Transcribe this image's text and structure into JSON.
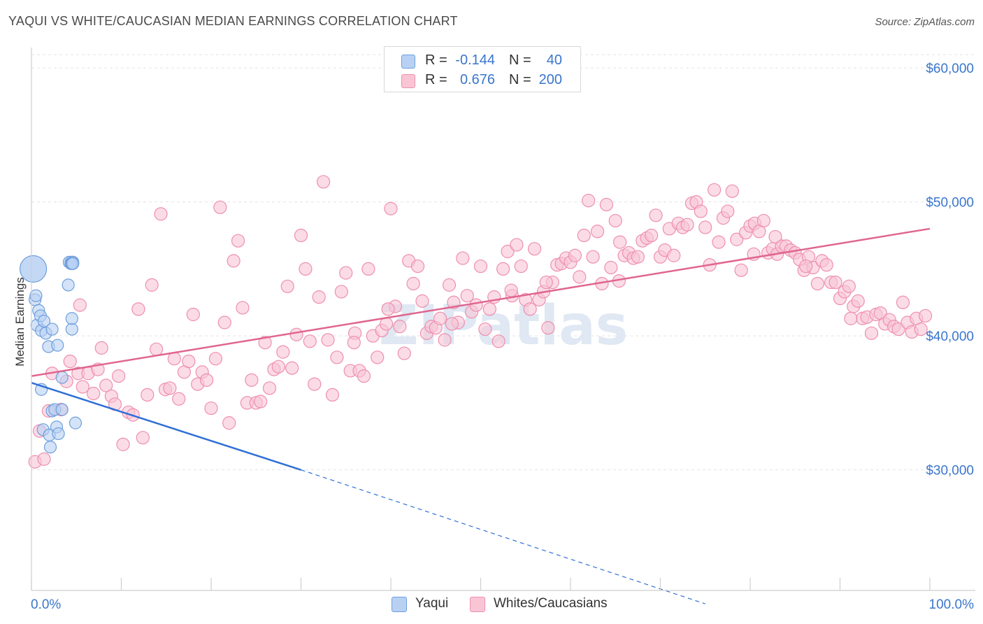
{
  "title": "YAQUI VS WHITE/CAUCASIAN MEDIAN EARNINGS CORRELATION CHART",
  "source": "Source: ZipAtlas.com",
  "watermark": "ZIPatlas",
  "legend": [
    {
      "r_label": "R =",
      "r_value": "-0.144",
      "n_label": "N =",
      "n_value": "40"
    },
    {
      "r_label": "R =",
      "r_value": "0.676",
      "n_label": "N =",
      "n_value": "200"
    }
  ],
  "bottom_legend": [
    "Yaqui",
    "Whites/Caucasians"
  ],
  "colors": {
    "yaqui_fill": "#b8d1f3",
    "yaqui_stroke": "#6f9fdc",
    "yaqui_line": "#2f6fd6",
    "white_fill": "#f9c5d5",
    "white_stroke": "#ee8faf",
    "white_line": "#e0668f",
    "axis_label": "#3a76cc",
    "grid": "#e3e3e3"
  },
  "chart_data": {
    "type": "scatter",
    "title": "YAQUI VS WHITE/CAUCASIAN MEDIAN EARNINGS CORRELATION CHART",
    "xlabel": "",
    "ylabel": "Median Earnings",
    "xlim": [
      0,
      100
    ],
    "ylim": [
      21000,
      61000
    ],
    "x_tick_labels": [
      "0.0%",
      "100.0%"
    ],
    "y_ticks": [
      30000,
      40000,
      50000,
      60000
    ],
    "y_tick_labels": [
      "$30,000",
      "$40,000",
      "$50,000",
      "$60,000"
    ],
    "grid": true,
    "series": [
      {
        "name": "Yaqui",
        "r": -0.144,
        "n": 40,
        "trend": {
          "x0": 0,
          "y0": 36500,
          "x1": 30,
          "y1": 30000,
          "dashed_to_x": 75,
          "dashed_to_y": 20000
        },
        "points": [
          [
            0.2,
            45000
          ],
          [
            0.4,
            42700
          ],
          [
            0.5,
            43000
          ],
          [
            0.6,
            40800
          ],
          [
            0.8,
            41900
          ],
          [
            1.0,
            41500
          ],
          [
            1.1,
            40400
          ],
          [
            1.4,
            41100
          ],
          [
            1.6,
            40200
          ],
          [
            1.9,
            39200
          ],
          [
            2.3,
            40500
          ],
          [
            2.9,
            39300
          ],
          [
            3.4,
            36900
          ],
          [
            1.1,
            36000
          ],
          [
            2.3,
            34400
          ],
          [
            2.6,
            34500
          ],
          [
            3.4,
            34500
          ],
          [
            1.3,
            33000
          ],
          [
            2.0,
            32600
          ],
          [
            2.8,
            33200
          ],
          [
            3.0,
            32700
          ],
          [
            2.1,
            31700
          ],
          [
            4.9,
            33500
          ],
          [
            4.1,
            43800
          ],
          [
            4.5,
            40500
          ],
          [
            4.5,
            41300
          ],
          [
            4.6,
            45400
          ],
          [
            4.6,
            45500
          ],
          [
            4.4,
            45500
          ],
          [
            4.2,
            45500
          ],
          [
            4.4,
            45400
          ],
          [
            4.5,
            45400
          ],
          [
            4.5,
            45400
          ],
          [
            4.6,
            45500
          ],
          [
            4.6,
            45400
          ],
          [
            4.4,
            45400
          ],
          [
            4.4,
            45400
          ],
          [
            4.5,
            45400
          ],
          [
            4.5,
            45400
          ],
          [
            4.6,
            45400
          ]
        ]
      },
      {
        "name": "Whites/Caucasians",
        "r": 0.676,
        "n": 200,
        "trend": {
          "x0": 0,
          "y0": 37000,
          "x1": 100,
          "y1": 48000
        },
        "points": [
          [
            0.4,
            30600
          ],
          [
            1.4,
            30800
          ],
          [
            0.9,
            32900
          ],
          [
            1.9,
            34400
          ],
          [
            2.3,
            37200
          ],
          [
            3.3,
            34500
          ],
          [
            3.9,
            36600
          ],
          [
            4.3,
            38100
          ],
          [
            5.2,
            37200
          ],
          [
            5.4,
            42300
          ],
          [
            5.7,
            36200
          ],
          [
            6.3,
            37200
          ],
          [
            6.9,
            35700
          ],
          [
            7.4,
            37500
          ],
          [
            7.8,
            39100
          ],
          [
            8.3,
            36300
          ],
          [
            8.9,
            35500
          ],
          [
            9.3,
            34900
          ],
          [
            9.7,
            37000
          ],
          [
            10.2,
            31900
          ],
          [
            10.8,
            34300
          ],
          [
            11.3,
            34100
          ],
          [
            11.9,
            42000
          ],
          [
            12.4,
            32400
          ],
          [
            12.9,
            35600
          ],
          [
            13.4,
            43800
          ],
          [
            13.9,
            39000
          ],
          [
            14.4,
            49100
          ],
          [
            14.9,
            36000
          ],
          [
            15.4,
            36100
          ],
          [
            15.9,
            38300
          ],
          [
            16.4,
            35300
          ],
          [
            17.0,
            37300
          ],
          [
            17.5,
            38100
          ],
          [
            18.0,
            41600
          ],
          [
            18.5,
            36400
          ],
          [
            19.0,
            37300
          ],
          [
            19.5,
            36700
          ],
          [
            20.0,
            34600
          ],
          [
            20.5,
            38300
          ],
          [
            21.0,
            49600
          ],
          [
            21.5,
            41000
          ],
          [
            22.0,
            33500
          ],
          [
            22.5,
            45600
          ],
          [
            23.0,
            47100
          ],
          [
            23.5,
            42100
          ],
          [
            24.0,
            35000
          ],
          [
            24.5,
            36700
          ],
          [
            25.0,
            35000
          ],
          [
            25.5,
            35100
          ],
          [
            26.0,
            39500
          ],
          [
            26.5,
            36100
          ],
          [
            27.0,
            37500
          ],
          [
            27.5,
            37700
          ],
          [
            28.0,
            38800
          ],
          [
            28.5,
            43700
          ],
          [
            29.0,
            37600
          ],
          [
            29.5,
            40100
          ],
          [
            30.0,
            47500
          ],
          [
            30.5,
            45000
          ],
          [
            31.0,
            39600
          ],
          [
            31.5,
            36400
          ],
          [
            32.0,
            42900
          ],
          [
            32.5,
            51500
          ],
          [
            33.0,
            39700
          ],
          [
            33.5,
            35600
          ],
          [
            34.0,
            38400
          ],
          [
            34.5,
            43300
          ],
          [
            35.0,
            44700
          ],
          [
            35.5,
            37400
          ],
          [
            36.0,
            40200
          ],
          [
            36.5,
            37400
          ],
          [
            37.0,
            37000
          ],
          [
            37.5,
            45000
          ],
          [
            38.0,
            40000
          ],
          [
            38.5,
            38400
          ],
          [
            39.0,
            40400
          ],
          [
            39.5,
            40900
          ],
          [
            40.0,
            49500
          ],
          [
            40.5,
            42200
          ],
          [
            41.0,
            40700
          ],
          [
            41.5,
            38700
          ],
          [
            42.0,
            45600
          ],
          [
            42.5,
            43900
          ],
          [
            43.0,
            45200
          ],
          [
            43.5,
            42600
          ],
          [
            44.0,
            40200
          ],
          [
            44.5,
            40700
          ],
          [
            45.0,
            40600
          ],
          [
            45.5,
            41300
          ],
          [
            46.0,
            39700
          ],
          [
            46.5,
            43800
          ],
          [
            47.0,
            42500
          ],
          [
            47.5,
            41000
          ],
          [
            48.0,
            45800
          ],
          [
            48.5,
            43000
          ],
          [
            49.0,
            41800
          ],
          [
            49.5,
            42300
          ],
          [
            50.0,
            45200
          ],
          [
            50.5,
            40500
          ],
          [
            51.0,
            42000
          ],
          [
            51.5,
            42900
          ],
          [
            52.0,
            39600
          ],
          [
            52.5,
            45000
          ],
          [
            53.0,
            46300
          ],
          [
            53.5,
            43000
          ],
          [
            54.0,
            46800
          ],
          [
            54.5,
            45200
          ],
          [
            55.0,
            42700
          ],
          [
            55.5,
            42000
          ],
          [
            56.0,
            46500
          ],
          [
            56.5,
            42700
          ],
          [
            57.0,
            43300
          ],
          [
            57.5,
            40600
          ],
          [
            58.0,
            44000
          ],
          [
            58.5,
            45300
          ],
          [
            59.0,
            45400
          ],
          [
            59.5,
            45800
          ],
          [
            60.0,
            45500
          ],
          [
            60.5,
            46000
          ],
          [
            61.0,
            44400
          ],
          [
            61.5,
            47500
          ],
          [
            62.0,
            50100
          ],
          [
            62.5,
            45900
          ],
          [
            63.0,
            47800
          ],
          [
            63.5,
            43900
          ],
          [
            64.0,
            49800
          ],
          [
            64.5,
            45100
          ],
          [
            65.0,
            48600
          ],
          [
            65.5,
            47000
          ],
          [
            66.0,
            46000
          ],
          [
            66.5,
            46200
          ],
          [
            67.0,
            45800
          ],
          [
            67.5,
            45900
          ],
          [
            68.0,
            47100
          ],
          [
            68.5,
            47300
          ],
          [
            69.0,
            47500
          ],
          [
            69.5,
            49000
          ],
          [
            70.0,
            45900
          ],
          [
            70.5,
            46400
          ],
          [
            71.0,
            48000
          ],
          [
            71.5,
            46000
          ],
          [
            72.0,
            48400
          ],
          [
            72.5,
            48100
          ],
          [
            73.0,
            48300
          ],
          [
            73.5,
            49900
          ],
          [
            74.0,
            50000
          ],
          [
            74.5,
            49300
          ],
          [
            75.0,
            48100
          ],
          [
            75.5,
            45300
          ],
          [
            76.0,
            50900
          ],
          [
            76.5,
            47000
          ],
          [
            77.0,
            48800
          ],
          [
            77.5,
            49300
          ],
          [
            78.0,
            50800
          ],
          [
            78.5,
            47200
          ],
          [
            79.0,
            44900
          ],
          [
            79.5,
            47700
          ],
          [
            80.0,
            48200
          ],
          [
            80.5,
            48400
          ],
          [
            81.0,
            47800
          ],
          [
            81.5,
            48600
          ],
          [
            82.0,
            46200
          ],
          [
            82.5,
            46500
          ],
          [
            83.0,
            46100
          ],
          [
            83.5,
            46700
          ],
          [
            84.0,
            46700
          ],
          [
            84.5,
            46400
          ],
          [
            85.0,
            46200
          ],
          [
            85.5,
            45700
          ],
          [
            86.0,
            44900
          ],
          [
            86.5,
            45900
          ],
          [
            87.0,
            45100
          ],
          [
            87.5,
            43900
          ],
          [
            88.0,
            45600
          ],
          [
            88.5,
            45300
          ],
          [
            89.0,
            44000
          ],
          [
            89.5,
            44000
          ],
          [
            90.0,
            42800
          ],
          [
            90.5,
            43300
          ],
          [
            91.0,
            43700
          ],
          [
            91.5,
            42200
          ],
          [
            92.0,
            42600
          ],
          [
            92.5,
            41300
          ],
          [
            93.0,
            41400
          ],
          [
            93.5,
            40200
          ],
          [
            94.0,
            41600
          ],
          [
            94.5,
            41700
          ],
          [
            95.0,
            40900
          ],
          [
            95.5,
            41200
          ],
          [
            96.0,
            40700
          ],
          [
            96.5,
            40500
          ],
          [
            97.0,
            42500
          ],
          [
            97.5,
            41000
          ],
          [
            98.0,
            40300
          ],
          [
            98.5,
            41300
          ],
          [
            99.0,
            40500
          ],
          [
            99.5,
            41500
          ],
          [
            39.7,
            42000
          ],
          [
            46.8,
            40900
          ],
          [
            53.4,
            43400
          ],
          [
            35.9,
            39500
          ],
          [
            65.4,
            44100
          ],
          [
            80.4,
            46100
          ],
          [
            91.2,
            41300
          ],
          [
            82.8,
            47400
          ],
          [
            86.2,
            45200
          ],
          [
            57.3,
            44000
          ]
        ]
      }
    ]
  }
}
